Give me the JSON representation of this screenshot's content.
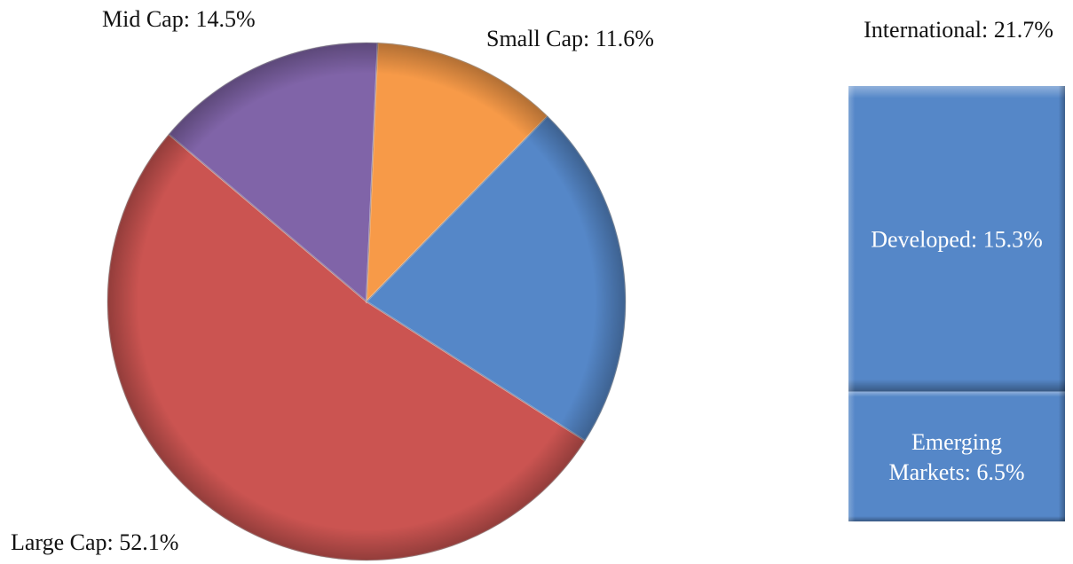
{
  "chart_data": [
    {
      "type": "pie",
      "slices": [
        {
          "name": "Large Cap",
          "value": 52.1,
          "label": "Large Cap: 52.1%",
          "color": "#CB5451"
        },
        {
          "name": "Mid Cap",
          "value": 14.5,
          "label": "Mid Cap: 14.5%",
          "color": "#8064A8"
        },
        {
          "name": "Small Cap",
          "value": 11.6,
          "label": "Small Cap: 11.6%",
          "color": "#F79A48"
        },
        {
          "name": "International",
          "value": 21.7,
          "label": "International: 21.7%",
          "color": "#5587C8"
        }
      ],
      "style": "3d-bevel"
    },
    {
      "type": "bar",
      "stacked": true,
      "title": "International: 21.7%",
      "segments": [
        {
          "name": "Developed",
          "value": 15.3,
          "label": "Developed: 15.3%",
          "color": "#5587C8"
        },
        {
          "name": "Emerging Markets",
          "value": 6.5,
          "label_lines": [
            "Emerging",
            "Markets: 6.5%"
          ],
          "color": "#5587C8"
        }
      ]
    }
  ]
}
